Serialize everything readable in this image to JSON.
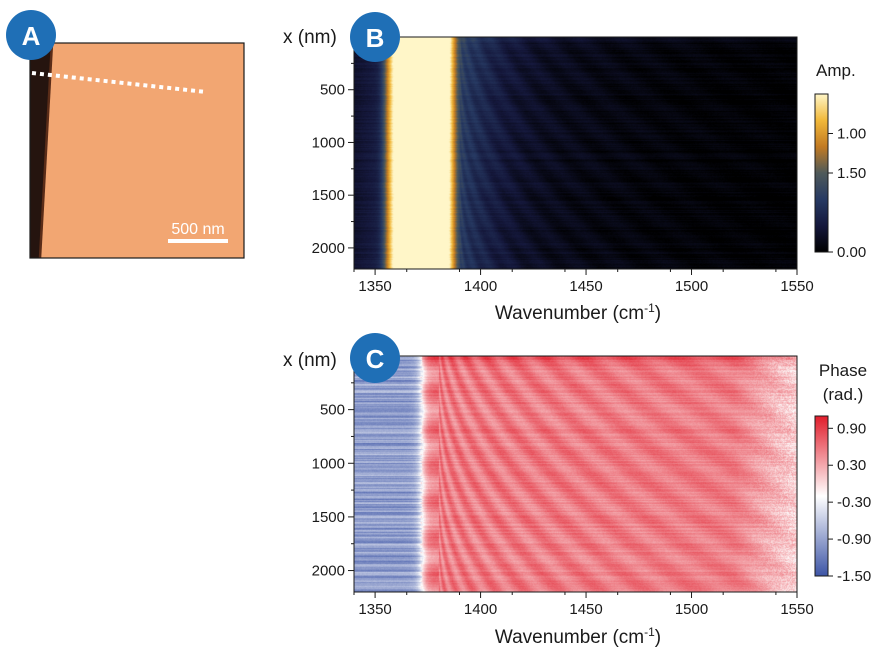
{
  "panels": {
    "a": {
      "letter": "A",
      "scalebar_label": "500 nm"
    },
    "b": {
      "letter": "B"
    },
    "c": {
      "letter": "C"
    }
  },
  "colors": {
    "badge": "#1f6fb6",
    "afm_substrate": "#f2a672",
    "afm_background": "#25140f",
    "amplitude_map": [
      "#000000",
      "#15183c",
      "#273a63",
      "#4f5a5a",
      "#c27a22",
      "#f1b83a",
      "#fff6c8"
    ],
    "phase_map": [
      "#3d55a6",
      "#ffffff",
      "#e11d2b"
    ]
  },
  "chart_data": [
    {
      "panel": "B",
      "type": "heatmap",
      "title": "",
      "ylabel": "x (nm)",
      "xlabel": "Wavenumber (cm-1)",
      "xlabel_parts": {
        "main": "Wavenumber (cm",
        "sup": "-1",
        "end": ")"
      },
      "xlim": [
        1340,
        1550
      ],
      "ylim": [
        2200,
        0
      ],
      "y_reversed": true,
      "xticks": [
        1350,
        1400,
        1450,
        1500,
        1550
      ],
      "yticks": [
        500,
        1000,
        1500,
        2000
      ],
      "colorbar": {
        "title": "Amp.",
        "ticks": [
          "1.00",
          "1.50",
          "0.00"
        ],
        "tick_positions": [
          0.75,
          0.5,
          0.0
        ]
      },
      "features": {
        "bright_band_cm1": [
          1357,
          1385
        ],
        "bright_band_peak": 1.3,
        "tail_start_cm1": 1390,
        "fringe_tail_end_cm1": 1550,
        "noise_level": 0.04
      }
    },
    {
      "panel": "C",
      "type": "heatmap",
      "title": "",
      "ylabel": "x (nm)",
      "xlabel": "Wavenumber (cm-1)",
      "xlabel_parts": {
        "main": "Wavenumber (cm",
        "sup": "-1",
        "end": ")"
      },
      "xlim": [
        1340,
        1550
      ],
      "ylim": [
        2200,
        0
      ],
      "y_reversed": true,
      "xticks": [
        1350,
        1400,
        1450,
        1500,
        1550
      ],
      "yticks": [
        500,
        1000,
        1500,
        2000
      ],
      "colorbar": {
        "title_lines": [
          "Phase",
          "(rad.)"
        ],
        "ticks": [
          "0.90",
          "0.30",
          "-0.30",
          "-0.90",
          "-1.50"
        ],
        "tick_values": [
          0.9,
          0.3,
          -0.3,
          -0.9,
          -1.5
        ],
        "range": [
          -1.5,
          1.1
        ]
      },
      "features": {
        "phase_step_cm1": 1372,
        "low_phase_value": -0.95,
        "high_phase_value": 0.55,
        "noise_level": 0.15
      }
    }
  ]
}
